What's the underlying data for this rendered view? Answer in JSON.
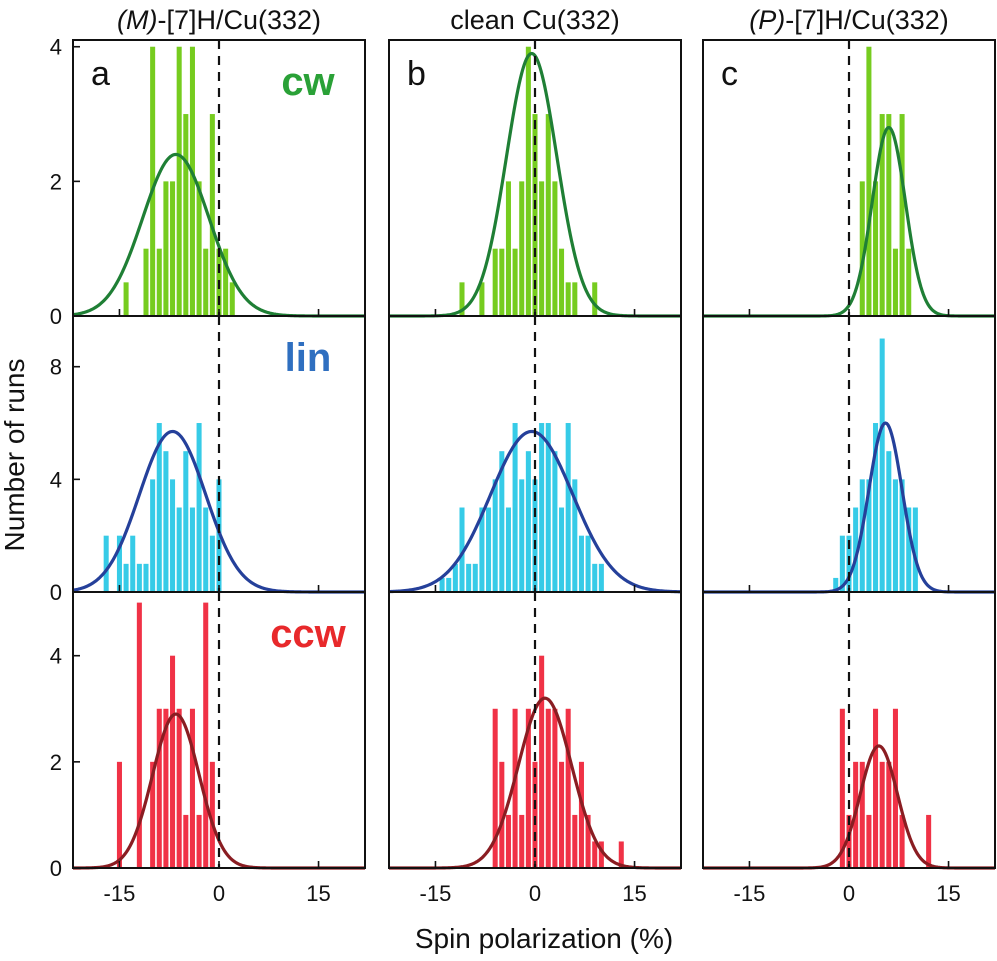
{
  "chart_data": {
    "type": "histogram-grid",
    "xlabel": "Spin polarization (%)",
    "ylabel": "Number of runs",
    "x_ticks": [
      -15,
      0,
      15
    ],
    "xlim": [
      -22,
      22
    ],
    "columns": [
      {
        "title_italic": "(M)",
        "title_rest": "-[7]H/Cu(332)",
        "letter": "a"
      },
      {
        "title_italic": "",
        "title_rest": "clean Cu(332)",
        "letter": "b"
      },
      {
        "title_italic": "(P)",
        "title_rest": "-[7]H/Cu(332)",
        "letter": "c"
      }
    ],
    "rows": [
      {
        "label": "cw",
        "label_color": "#2aa137",
        "bar_color": "#76cc1f",
        "curve_color": "#1f7f35",
        "ylim": [
          0,
          4.1
        ],
        "y_ticks": [
          0,
          2,
          4
        ],
        "panels": [
          {
            "bars": [
              {
                "x": -14,
                "y": 0.5
              },
              {
                "x": -13,
                "y": 0
              },
              {
                "x": -12,
                "y": 0
              },
              {
                "x": -11,
                "y": 1
              },
              {
                "x": -10,
                "y": 4
              },
              {
                "x": -9,
                "y": 1
              },
              {
                "x": -8,
                "y": 2
              },
              {
                "x": -7,
                "y": 2
              },
              {
                "x": -6,
                "y": 4
              },
              {
                "x": -5,
                "y": 3
              },
              {
                "x": -4,
                "y": 4
              },
              {
                "x": -3,
                "y": 2
              },
              {
                "x": -2,
                "y": 1
              },
              {
                "x": -1,
                "y": 3
              },
              {
                "x": 0,
                "y": 1
              },
              {
                "x": 1,
                "y": 1
              },
              {
                "x": 2,
                "y": 0.5
              }
            ],
            "fit": {
              "mean": -6.5,
              "sigma": 5.0,
              "amp": 2.4
            }
          },
          {
            "bars": [
              {
                "x": -11,
                "y": 0.5
              },
              {
                "x": -10,
                "y": 0
              },
              {
                "x": -9,
                "y": 0
              },
              {
                "x": -8,
                "y": 0.5
              },
              {
                "x": -7,
                "y": 0
              },
              {
                "x": -6,
                "y": 1
              },
              {
                "x": -5,
                "y": 1
              },
              {
                "x": -4,
                "y": 2
              },
              {
                "x": -3,
                "y": 1
              },
              {
                "x": -2,
                "y": 2
              },
              {
                "x": -1,
                "y": 4
              },
              {
                "x": 0,
                "y": 3
              },
              {
                "x": 1,
                "y": 2
              },
              {
                "x": 2,
                "y": 3
              },
              {
                "x": 3,
                "y": 2
              },
              {
                "x": 4,
                "y": 1
              },
              {
                "x": 5,
                "y": 0.5
              },
              {
                "x": 6,
                "y": 0.5
              },
              {
                "x": 7,
                "y": 0
              },
              {
                "x": 8,
                "y": 0
              },
              {
                "x": 9,
                "y": 0.5
              }
            ],
            "fit": {
              "mean": -0.5,
              "sigma": 3.8,
              "amp": 3.9
            }
          },
          {
            "bars": [
              {
                "x": 2,
                "y": 2
              },
              {
                "x": 3,
                "y": 4
              },
              {
                "x": 4,
                "y": 2
              },
              {
                "x": 5,
                "y": 3
              },
              {
                "x": 6,
                "y": 3
              },
              {
                "x": 7,
                "y": 1
              },
              {
                "x": 8,
                "y": 3
              },
              {
                "x": 9,
                "y": 1
              }
            ],
            "fit": {
              "mean": 6.0,
              "sigma": 2.5,
              "amp": 2.8
            }
          }
        ]
      },
      {
        "label": "lin",
        "label_color": "#2f6fc0",
        "bar_color": "#36cbe7",
        "curve_color": "#25409a",
        "ylim": [
          0,
          9.8
        ],
        "y_ticks": [
          0,
          4,
          8
        ],
        "panels": [
          {
            "bars": [
              {
                "x": -17,
                "y": 2
              },
              {
                "x": -16,
                "y": 0
              },
              {
                "x": -15,
                "y": 2
              },
              {
                "x": -14,
                "y": 1
              },
              {
                "x": -13,
                "y": 2
              },
              {
                "x": -12,
                "y": 1
              },
              {
                "x": -11,
                "y": 1
              },
              {
                "x": -10,
                "y": 4
              },
              {
                "x": -9,
                "y": 6
              },
              {
                "x": -8,
                "y": 5
              },
              {
                "x": -7,
                "y": 4
              },
              {
                "x": -6,
                "y": 3
              },
              {
                "x": -5,
                "y": 5
              },
              {
                "x": -4,
                "y": 3
              },
              {
                "x": -3,
                "y": 6
              },
              {
                "x": -2,
                "y": 3
              },
              {
                "x": -1,
                "y": 2
              },
              {
                "x": 0,
                "y": 4
              }
            ],
            "fit": {
              "mean": -7.0,
              "sigma": 5.0,
              "amp": 5.7
            }
          },
          {
            "bars": [
              {
                "x": -14,
                "y": 0.5
              },
              {
                "x": -13,
                "y": 0.5
              },
              {
                "x": -12,
                "y": 1
              },
              {
                "x": -11,
                "y": 3
              },
              {
                "x": -10,
                "y": 1
              },
              {
                "x": -9,
                "y": 1
              },
              {
                "x": -8,
                "y": 3
              },
              {
                "x": -7,
                "y": 3
              },
              {
                "x": -6,
                "y": 4
              },
              {
                "x": -5,
                "y": 5
              },
              {
                "x": -4,
                "y": 3
              },
              {
                "x": -3,
                "y": 6
              },
              {
                "x": -2,
                "y": 4
              },
              {
                "x": -1,
                "y": 5
              },
              {
                "x": 0,
                "y": 4
              },
              {
                "x": 1,
                "y": 6
              },
              {
                "x": 2,
                "y": 6
              },
              {
                "x": 3,
                "y": 5
              },
              {
                "x": 4,
                "y": 3
              },
              {
                "x": 5,
                "y": 6
              },
              {
                "x": 6,
                "y": 4
              },
              {
                "x": 7,
                "y": 2
              },
              {
                "x": 8,
                "y": 2
              },
              {
                "x": 9,
                "y": 1
              },
              {
                "x": 10,
                "y": 1
              }
            ],
            "fit": {
              "mean": -0.5,
              "sigma": 6.2,
              "amp": 5.7
            }
          },
          {
            "bars": [
              {
                "x": -2,
                "y": 0.5
              },
              {
                "x": -1,
                "y": 2
              },
              {
                "x": 0,
                "y": 2
              },
              {
                "x": 1,
                "y": 3
              },
              {
                "x": 2,
                "y": 4
              },
              {
                "x": 3,
                "y": 4
              },
              {
                "x": 4,
                "y": 6
              },
              {
                "x": 5,
                "y": 9
              },
              {
                "x": 6,
                "y": 5
              },
              {
                "x": 7,
                "y": 4
              },
              {
                "x": 8,
                "y": 4
              },
              {
                "x": 9,
                "y": 3
              },
              {
                "x": 10,
                "y": 3
              }
            ],
            "fit": {
              "mean": 5.5,
              "sigma": 2.5,
              "amp": 6.0
            }
          }
        ]
      },
      {
        "label": "ccw",
        "label_color": "#e8292b",
        "bar_color": "#f03246",
        "curve_color": "#8a1d22",
        "ylim": [
          0,
          5.2
        ],
        "y_ticks": [
          0,
          2,
          4
        ],
        "panels": [
          {
            "bars": [
              {
                "x": -15,
                "y": 2
              },
              {
                "x": -14,
                "y": 0
              },
              {
                "x": -13,
                "y": 0
              },
              {
                "x": -12,
                "y": 5
              },
              {
                "x": -11,
                "y": 0
              },
              {
                "x": -10,
                "y": 2
              },
              {
                "x": -9,
                "y": 3
              },
              {
                "x": -8,
                "y": 3
              },
              {
                "x": -7,
                "y": 4
              },
              {
                "x": -6,
                "y": 3
              },
              {
                "x": -5,
                "y": 1
              },
              {
                "x": -4,
                "y": 3
              },
              {
                "x": -3,
                "y": 1
              },
              {
                "x": -2,
                "y": 5
              },
              {
                "x": -1,
                "y": 2
              }
            ],
            "fit": {
              "mean": -6.5,
              "sigma": 3.5,
              "amp": 2.9
            }
          },
          {
            "bars": [
              {
                "x": -6,
                "y": 3
              },
              {
                "x": -5,
                "y": 2
              },
              {
                "x": -4,
                "y": 1
              },
              {
                "x": -3,
                "y": 3
              },
              {
                "x": -2,
                "y": 1
              },
              {
                "x": -1,
                "y": 3
              },
              {
                "x": 0,
                "y": 2
              },
              {
                "x": 1,
                "y": 4
              },
              {
                "x": 2,
                "y": 3
              },
              {
                "x": 3,
                "y": 3
              },
              {
                "x": 4,
                "y": 2
              },
              {
                "x": 5,
                "y": 3
              },
              {
                "x": 6,
                "y": 1
              },
              {
                "x": 7,
                "y": 2
              },
              {
                "x": 8,
                "y": 1
              },
              {
                "x": 9,
                "y": 0.5
              },
              {
                "x": 10,
                "y": 0.5
              },
              {
                "x": 11,
                "y": 0
              },
              {
                "x": 12,
                "y": 0
              },
              {
                "x": 13,
                "y": 0.5
              }
            ],
            "fit": {
              "mean": 1.5,
              "sigma": 4.0,
              "amp": 3.2
            }
          },
          {
            "bars": [
              {
                "x": -1,
                "y": 3
              },
              {
                "x": 0,
                "y": 1
              },
              {
                "x": 1,
                "y": 2
              },
              {
                "x": 2,
                "y": 2
              },
              {
                "x": 3,
                "y": 1
              },
              {
                "x": 4,
                "y": 3
              },
              {
                "x": 5,
                "y": 2
              },
              {
                "x": 6,
                "y": 2
              },
              {
                "x": 7,
                "y": 3
              },
              {
                "x": 8,
                "y": 1
              },
              {
                "x": 9,
                "y": 0
              },
              {
                "x": 10,
                "y": 0
              },
              {
                "x": 11,
                "y": 0
              },
              {
                "x": 12,
                "y": 1
              }
            ],
            "fit": {
              "mean": 4.5,
              "sigma": 2.8,
              "amp": 2.3
            }
          }
        ]
      }
    ]
  }
}
